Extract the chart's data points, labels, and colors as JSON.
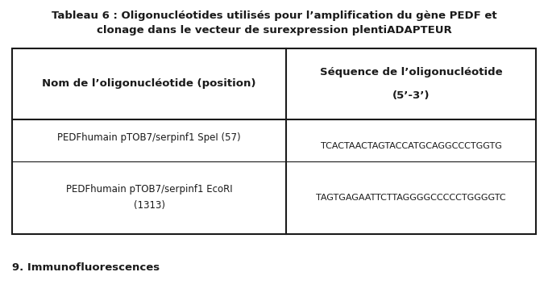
{
  "title_line1_normal": "Tableau 6 : Oligonucléotides utilisés pour l’amplification du gène ",
  "title_italic": "PEDF",
  "title_end": " et",
  "title_line2": "clonage dans le vecteur de surexpression plentiADAPTEUR",
  "col1_header": "Nom de l’oligonucléotide (position)",
  "col2_header_line1": "Séquence de l’oligonucléotide",
  "col2_header_line2": "(5’-3’)",
  "row1_col1": "PEDFhumain pTOB7/serpinf1 SpeI (57)",
  "row1_col2": "TCACTAACTAGTACCATGCAGGCCCTGGTG",
  "row2_col1_line1": "PEDFhumain pTOB7/serpinf1 EcoRI",
  "row2_col1_line2": "(1313)",
  "row2_col2": "TAGTGAGAATTCTTAGGGGCCCCCTGGGGTC",
  "footer": "9. Immunofluorescences",
  "bg_color": "#ffffff",
  "text_color": "#1a1a1a",
  "border_color": "#1a1a1a",
  "title_fontsize": 9.5,
  "header_fontsize": 9.5,
  "cell_fontsize": 8.5,
  "seq_fontsize": 8.0,
  "footer_fontsize": 9.5
}
